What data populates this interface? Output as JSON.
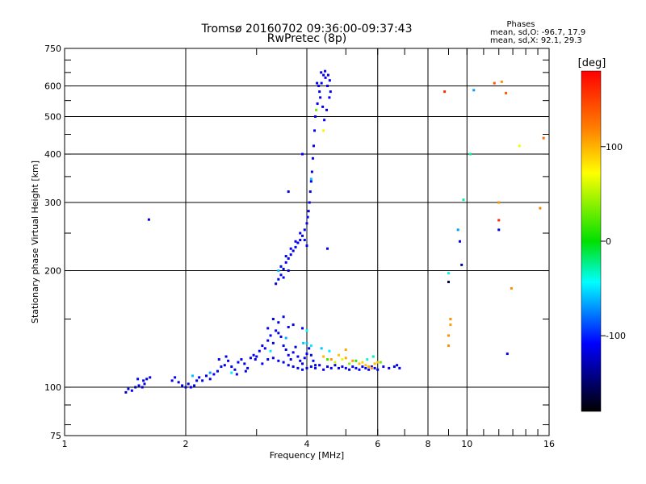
{
  "chart_data": {
    "type": "scatter",
    "title": "Tromsø 20160702 09:36:00-09:37:43",
    "subtitle": "RwPretec (8p)",
    "xlabel": "Frequency [MHz]",
    "ylabel": "Stationary phase Virtual Height [km]",
    "x_scale": "log",
    "y_scale": "log",
    "xlim": [
      1,
      16
    ],
    "ylim": [
      75,
      750
    ],
    "x_ticks": [
      1,
      2,
      4,
      6,
      8,
      10,
      16
    ],
    "y_ticks": [
      75,
      100,
      200,
      300,
      400,
      500,
      600,
      750
    ],
    "grid": true,
    "stats": {
      "heading": "Phases",
      "line_o": "mean, sd,O: -96.7, 17.9",
      "line_x": "mean, sd,X:  92.1, 29.3"
    },
    "colorbar": {
      "label": "[deg]",
      "ticks": [
        100,
        0,
        -100
      ],
      "range": [
        -180,
        180
      ]
    },
    "series": [
      {
        "points": [
          [
            1.42,
            97,
            -125
          ],
          [
            1.44,
            99,
            -120
          ],
          [
            1.47,
            98,
            -110
          ],
          [
            1.5,
            100,
            -130
          ],
          [
            1.53,
            101,
            -118
          ],
          [
            1.56,
            100,
            -115
          ],
          [
            1.58,
            102,
            -120
          ],
          [
            1.52,
            105,
            -110
          ],
          [
            1.57,
            104,
            -112
          ],
          [
            1.6,
            105,
            -120
          ],
          [
            1.63,
            106,
            -118
          ],
          [
            1.62,
            271,
            -120
          ],
          [
            1.85,
            104,
            -115
          ],
          [
            1.88,
            106,
            -110
          ],
          [
            1.92,
            103,
            -120
          ],
          [
            1.96,
            101,
            -118
          ],
          [
            2.0,
            100,
            -125
          ],
          [
            2.03,
            102,
            -120
          ],
          [
            2.06,
            100,
            -110
          ],
          [
            2.1,
            101,
            -115
          ],
          [
            2.13,
            104,
            -118
          ],
          [
            2.16,
            106,
            -110
          ],
          [
            2.2,
            104,
            -112
          ],
          [
            2.25,
            107,
            -115
          ],
          [
            2.3,
            105,
            -120
          ],
          [
            2.35,
            108,
            -110
          ],
          [
            2.4,
            110,
            -115
          ],
          [
            2.45,
            113,
            -112
          ],
          [
            2.5,
            114,
            -120
          ],
          [
            2.55,
            117,
            -110
          ],
          [
            2.6,
            113,
            -115
          ],
          [
            2.65,
            111,
            -118
          ],
          [
            2.7,
            116,
            -112
          ],
          [
            2.75,
            118,
            -110
          ],
          [
            2.8,
            115,
            -120
          ],
          [
            2.85,
            112,
            -115
          ],
          [
            2.9,
            119,
            -118
          ],
          [
            2.95,
            121,
            -110
          ],
          [
            2.08,
            107,
            -60
          ],
          [
            2.3,
            109,
            -70
          ],
          [
            2.6,
            109,
            -50
          ],
          [
            2.42,
            118,
            -112
          ],
          [
            2.52,
            120,
            -118
          ],
          [
            2.68,
            108,
            -110
          ],
          [
            2.82,
            110,
            -115
          ],
          [
            2.98,
            118,
            -112
          ],
          [
            3.0,
            120,
            -115
          ],
          [
            3.05,
            124,
            -110
          ],
          [
            3.1,
            128,
            -118
          ],
          [
            3.15,
            126,
            -112
          ],
          [
            3.2,
            132,
            -115
          ],
          [
            3.25,
            136,
            -110
          ],
          [
            3.3,
            130,
            -120
          ],
          [
            3.35,
            140,
            -112
          ],
          [
            3.4,
            138,
            -118
          ],
          [
            3.45,
            135,
            -115
          ],
          [
            3.5,
            128,
            -110
          ],
          [
            3.55,
            125,
            -118
          ],
          [
            3.6,
            121,
            -112
          ],
          [
            3.65,
            118,
            -115
          ],
          [
            3.7,
            123,
            -110
          ],
          [
            3.75,
            127,
            -120
          ],
          [
            3.8,
            120,
            -112
          ],
          [
            3.85,
            117,
            -115
          ],
          [
            3.9,
            115,
            -118
          ],
          [
            3.95,
            119,
            -110
          ],
          [
            4.0,
            122,
            -112
          ],
          [
            4.05,
            126,
            -115
          ],
          [
            4.1,
            121,
            -118
          ],
          [
            4.15,
            117,
            -110
          ],
          [
            4.2,
            114,
            -115
          ],
          [
            3.1,
            115,
            -112
          ],
          [
            3.2,
            118,
            -115
          ],
          [
            3.3,
            119,
            -118
          ],
          [
            3.4,
            117,
            -110
          ],
          [
            3.5,
            116,
            -115
          ],
          [
            3.6,
            114,
            -112
          ],
          [
            3.7,
            113,
            -118
          ],
          [
            3.8,
            112,
            -115
          ],
          [
            3.9,
            111,
            -110
          ],
          [
            4.0,
            112,
            -118
          ],
          [
            4.1,
            113,
            -112
          ],
          [
            3.3,
            150,
            -115
          ],
          [
            3.4,
            147,
            -118
          ],
          [
            3.2,
            142,
            -110
          ],
          [
            3.6,
            143,
            -112
          ],
          [
            3.5,
            152,
            -115
          ],
          [
            3.7,
            145,
            -118
          ],
          [
            3.9,
            142,
            -110
          ],
          [
            4.0,
            140,
            -40
          ],
          [
            3.92,
            130,
            -60
          ],
          [
            3.25,
            124,
            -50
          ],
          [
            3.55,
            134,
            -65
          ],
          [
            4.2,
            112,
            -110
          ],
          [
            4.3,
            114,
            -118
          ],
          [
            4.4,
            111,
            -112
          ],
          [
            4.5,
            113,
            -115
          ],
          [
            4.6,
            112,
            -110
          ],
          [
            4.7,
            114,
            -118
          ],
          [
            4.8,
            112,
            -112
          ],
          [
            4.9,
            113,
            -115
          ],
          [
            5.0,
            112,
            -110
          ],
          [
            5.1,
            111,
            -118
          ],
          [
            5.2,
            113,
            -112
          ],
          [
            5.3,
            112,
            -115
          ],
          [
            5.4,
            111,
            -110
          ],
          [
            5.5,
            113,
            -118
          ],
          [
            5.6,
            112,
            -112
          ],
          [
            5.7,
            111,
            -115
          ],
          [
            5.8,
            113,
            -110
          ],
          [
            5.9,
            112,
            -118
          ],
          [
            6.0,
            111,
            -112
          ],
          [
            6.2,
            113,
            -115
          ],
          [
            6.4,
            112,
            -110
          ],
          [
            6.6,
            113,
            -118
          ],
          [
            6.7,
            114,
            -112
          ],
          [
            6.8,
            112,
            -115
          ],
          [
            4.4,
            120,
            100
          ],
          [
            4.6,
            118,
            110
          ],
          [
            4.8,
            121,
            95
          ],
          [
            5.0,
            119,
            105
          ],
          [
            5.2,
            117,
            110
          ],
          [
            5.4,
            115,
            100
          ],
          [
            5.6,
            114,
            95
          ],
          [
            5.7,
            113,
            105
          ],
          [
            5.8,
            112,
            110
          ],
          [
            5.9,
            115,
            100
          ],
          [
            6.0,
            116,
            95
          ],
          [
            5.5,
            116,
            90
          ],
          [
            4.5,
            118,
            20
          ],
          [
            4.7,
            116,
            60
          ],
          [
            4.9,
            118,
            70
          ],
          [
            5.1,
            115,
            40
          ],
          [
            5.3,
            117,
            10
          ],
          [
            5.65,
            118,
            -40
          ],
          [
            5.85,
            120,
            -30
          ],
          [
            6.1,
            116,
            30
          ],
          [
            4.35,
            126,
            -60
          ],
          [
            4.55,
            124,
            -50
          ],
          [
            4.0,
            130,
            -60
          ],
          [
            4.1,
            128,
            -50
          ],
          [
            5.0,
            125,
            105
          ],
          [
            3.35,
            185,
            -120
          ],
          [
            3.4,
            190,
            -115
          ],
          [
            3.45,
            195,
            -112
          ],
          [
            3.5,
            202,
            -118
          ],
          [
            3.55,
            210,
            -110
          ],
          [
            3.6,
            215,
            -115
          ],
          [
            3.65,
            220,
            -112
          ],
          [
            3.7,
            225,
            -118
          ],
          [
            3.75,
            230,
            -110
          ],
          [
            3.8,
            236,
            -115
          ],
          [
            3.85,
            240,
            -112
          ],
          [
            3.9,
            246,
            -118
          ],
          [
            3.95,
            255,
            -110
          ],
          [
            4.0,
            265,
            -115
          ],
          [
            4.02,
            275,
            -112
          ],
          [
            4.04,
            285,
            -118
          ],
          [
            4.06,
            300,
            -110
          ],
          [
            4.08,
            320,
            -115
          ],
          [
            4.1,
            340,
            -112
          ],
          [
            4.12,
            360,
            -118
          ],
          [
            4.14,
            390,
            -110
          ],
          [
            4.16,
            420,
            -115
          ],
          [
            4.18,
            460,
            -112
          ],
          [
            4.2,
            500,
            -118
          ],
          [
            4.25,
            540,
            -110
          ],
          [
            4.3,
            580,
            -115
          ],
          [
            4.35,
            610,
            -112
          ],
          [
            4.4,
            640,
            -118
          ],
          [
            4.45,
            630,
            -110
          ],
          [
            4.5,
            600,
            -115
          ],
          [
            4.55,
            560,
            -112
          ],
          [
            4.48,
            520,
            -118
          ],
          [
            4.42,
            490,
            -110
          ],
          [
            4.38,
            530,
            -115
          ],
          [
            4.32,
            560,
            -118
          ],
          [
            4.28,
            600,
            -112
          ],
          [
            4.34,
            650,
            -115
          ],
          [
            4.44,
            655,
            -110
          ],
          [
            4.52,
            640,
            -118
          ],
          [
            4.56,
            620,
            -112
          ],
          [
            4.58,
            580,
            -115
          ],
          [
            4.24,
            610,
            -118
          ],
          [
            4.4,
            460,
            80
          ],
          [
            3.45,
            205,
            -112
          ],
          [
            3.55,
            218,
            -118
          ],
          [
            3.65,
            228,
            -110
          ],
          [
            3.75,
            238,
            -112
          ],
          [
            3.85,
            250,
            -115
          ],
          [
            3.6,
            200,
            -118
          ],
          [
            3.5,
            192,
            -112
          ],
          [
            3.95,
            240,
            -110
          ],
          [
            4.0,
            232,
            -115
          ],
          [
            3.4,
            200,
            -60
          ],
          [
            3.6,
            320,
            -118
          ],
          [
            3.9,
            400,
            -110
          ],
          [
            4.5,
            228,
            -115
          ],
          [
            4.1,
            345,
            -60
          ],
          [
            4.22,
            520,
            30
          ],
          [
            8.8,
            580,
            160
          ],
          [
            10.4,
            585,
            -70
          ],
          [
            11.7,
            610,
            140
          ],
          [
            12.2,
            615,
            115
          ],
          [
            12.5,
            575,
            140
          ],
          [
            10.2,
            400,
            -30
          ],
          [
            9.8,
            305,
            -30
          ],
          [
            12.0,
            300,
            115
          ],
          [
            13.5,
            420,
            70
          ],
          [
            15.2,
            290,
            120
          ],
          [
            15.5,
            440,
            130
          ],
          [
            9.5,
            255,
            -70
          ],
          [
            9.6,
            238,
            -115
          ],
          [
            9.7,
            207,
            -140
          ],
          [
            12.0,
            270,
            160
          ],
          [
            12.0,
            255,
            -120
          ],
          [
            9.0,
            197,
            -40
          ],
          [
            9.0,
            187,
            -160
          ],
          [
            9.1,
            150,
            115
          ],
          [
            9.1,
            145,
            110
          ],
          [
            9.0,
            136,
            115
          ],
          [
            9.0,
            128,
            115
          ],
          [
            12.9,
            180,
            115
          ],
          [
            12.6,
            122,
            -110
          ]
        ]
      }
    ]
  }
}
